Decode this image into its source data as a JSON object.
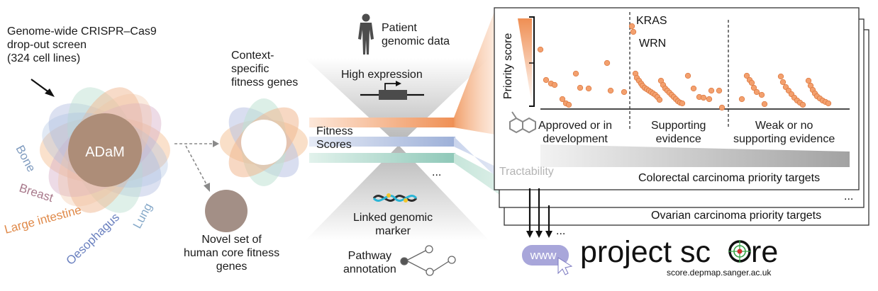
{
  "screen": {
    "title": "Genome-wide CRISPR–Cas9\ndrop-out screen\n(324 cell lines)",
    "core_label": "ADaM",
    "tissues": [
      "Bone",
      "Breast",
      "Large intestine",
      "Oesophagus",
      "Lung"
    ],
    "novel_label": "Novel set of\nhuman core fitness\ngenes",
    "context_label": "Context-\nspecific\nfitness genes"
  },
  "funnel": {
    "patient_label": "Patient\ngenomic data",
    "high_expression": "High expression",
    "fitness_scores": "Fitness\nScores",
    "ellipsis": "...",
    "linked_marker": "Linked genomic\nmarker",
    "pathway": "Pathway\nannotation"
  },
  "panel": {
    "y_label": "Priority score",
    "genes": [
      "KRAS",
      "WRN"
    ],
    "groups": [
      "Approved or in\ndevelopment",
      "Supporting\nevidence",
      "Weak or no\nsupporting evidence"
    ],
    "tractability": "Tractability",
    "colorectal": "Colorectal carcinoma priority targets",
    "ellipsis": "...",
    "ovarian": "Ovarian carcinoma priority targets"
  },
  "footer": {
    "www": "www",
    "brand_a": "project sc",
    "brand_b": "re",
    "url": "score.depmap.sanger.ac.uk",
    "arrows_ellipsis": "..."
  },
  "colors": {
    "orange": "#ef8f54",
    "dot": "#f3a06e",
    "dot_stroke": "#d9733a",
    "blue": "#9db0d8",
    "teal": "#8ec8b8",
    "tan": "#b89a80",
    "grey": "#888888",
    "www": "#a8a6da",
    "target": "#3aa64a",
    "target_dot": "#d2322d"
  }
}
